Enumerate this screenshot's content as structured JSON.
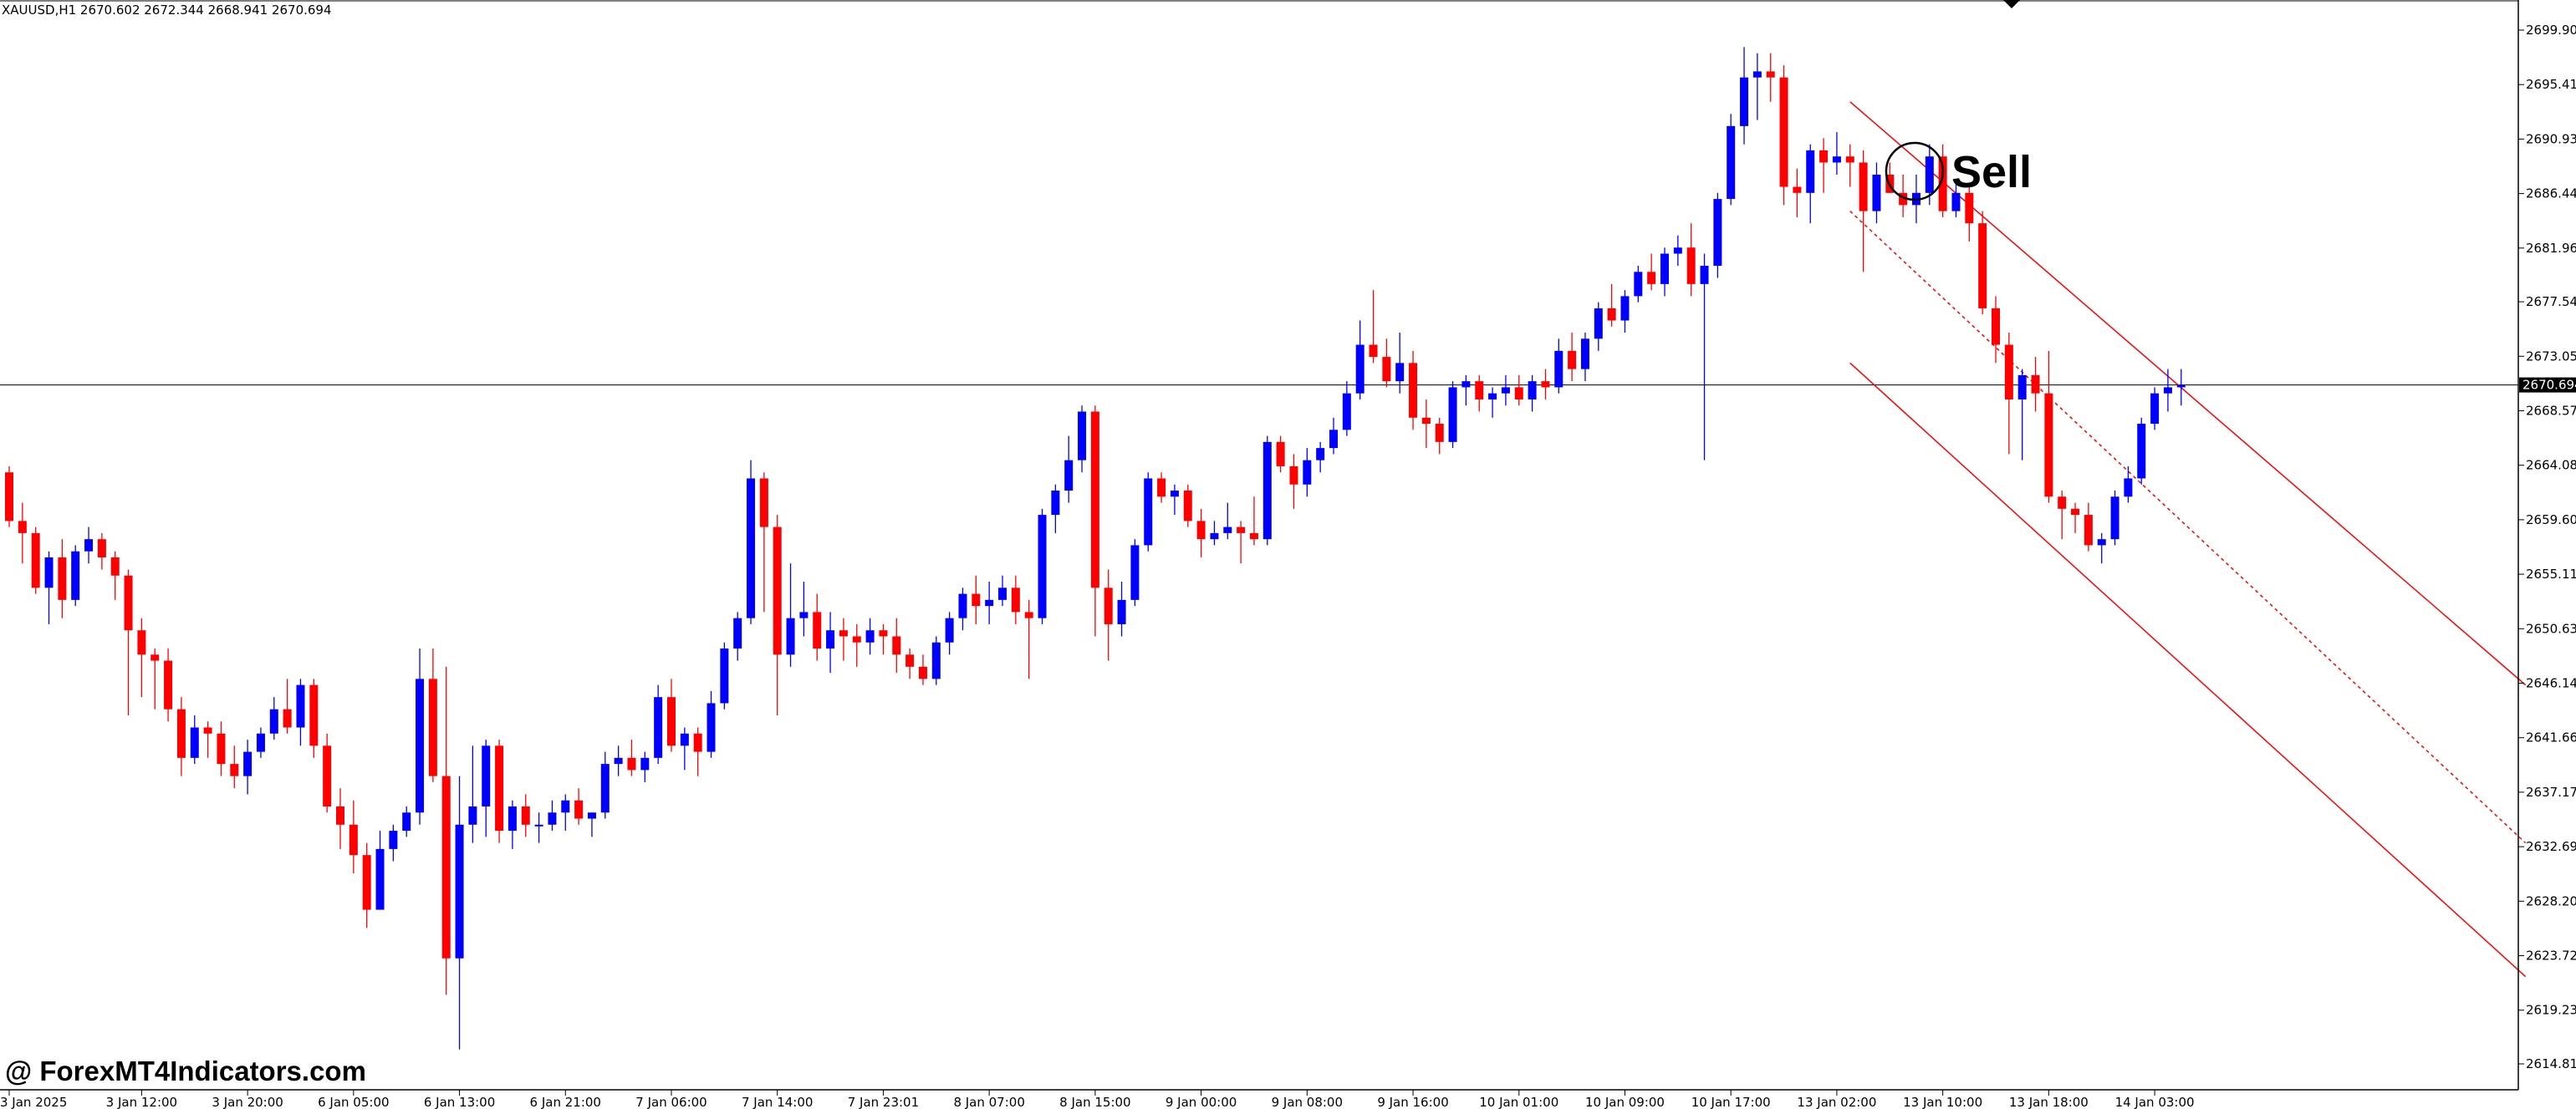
{
  "header": {
    "symbol_info": "XAUUSD,H1  2670.602 2672.344 2668.941 2670.694"
  },
  "watermark": {
    "text": "@ ForexMT4Indicators.com"
  },
  "signal": {
    "label": "Sell"
  },
  "colors": {
    "bull": "#0000ff",
    "bear": "#ff0000",
    "channel": "#ff0000",
    "axis": "#000000",
    "background": "#ffffff"
  },
  "chart_data": {
    "type": "candlestick",
    "symbol": "XAUUSD",
    "timeframe": "H1",
    "ylim": [
      2612.5,
      2702.0
    ],
    "y_ticks": [
      "2699.900",
      "2695.415",
      "2690.930",
      "2686.445",
      "2681.960",
      "2677.540",
      "2673.055",
      "2668.570",
      "2664.085",
      "2659.600",
      "2655.115",
      "2650.630",
      "2646.145",
      "2641.660",
      "2637.175",
      "2632.690",
      "2628.205",
      "2623.720",
      "2619.235",
      "2614.815"
    ],
    "current_price": "2670.694",
    "x_ticks": [
      {
        "label": "3 Jan 2025",
        "i": 0
      },
      {
        "label": "3 Jan 12:00",
        "i": 10
      },
      {
        "label": "3 Jan 20:00",
        "i": 18
      },
      {
        "label": "6 Jan 05:00",
        "i": 26
      },
      {
        "label": "6 Jan 13:00",
        "i": 34
      },
      {
        "label": "6 Jan 21:00",
        "i": 42
      },
      {
        "label": "7 Jan 06:00",
        "i": 50
      },
      {
        "label": "7 Jan 14:00",
        "i": 58
      },
      {
        "label": "7 Jan 23:01",
        "i": 66
      },
      {
        "label": "8 Jan 07:00",
        "i": 74
      },
      {
        "label": "8 Jan 15:00",
        "i": 82
      },
      {
        "label": "9 Jan 00:00",
        "i": 90
      },
      {
        "label": "9 Jan 08:00",
        "i": 98
      },
      {
        "label": "9 Jan 16:00",
        "i": 106
      },
      {
        "label": "10 Jan 01:00",
        "i": 114
      },
      {
        "label": "10 Jan 09:00",
        "i": 122
      },
      {
        "label": "10 Jan 17:00",
        "i": 130
      },
      {
        "label": "13 Jan 02:00",
        "i": 138
      },
      {
        "label": "13 Jan 10:00",
        "i": 146
      },
      {
        "label": "13 Jan 18:00",
        "i": 154
      },
      {
        "label": "14 Jan 03:00",
        "i": 162
      }
    ],
    "ohlc": [
      [
        2663.5,
        2664.0,
        2659.0,
        2659.5
      ],
      [
        2659.5,
        2661.0,
        2656.0,
        2658.5
      ],
      [
        2658.5,
        2659.0,
        2653.5,
        2654.0
      ],
      [
        2654.0,
        2657.0,
        2651.0,
        2656.5
      ],
      [
        2656.5,
        2658.0,
        2651.5,
        2653.0
      ],
      [
        2653.0,
        2657.5,
        2652.5,
        2657.0
      ],
      [
        2657.0,
        2659.0,
        2656.0,
        2658.0
      ],
      [
        2658.0,
        2658.5,
        2655.5,
        2656.5
      ],
      [
        2656.5,
        2657.0,
        2653.0,
        2655.0
      ],
      [
        2655.0,
        2655.5,
        2643.5,
        2650.5
      ],
      [
        2650.5,
        2651.5,
        2645.0,
        2648.5
      ],
      [
        2648.5,
        2649.0,
        2644.0,
        2648.0
      ],
      [
        2648.0,
        2649.0,
        2643.0,
        2644.0
      ],
      [
        2644.0,
        2645.0,
        2638.5,
        2640.0
      ],
      [
        2640.0,
        2643.5,
        2639.5,
        2642.5
      ],
      [
        2642.5,
        2643.0,
        2640.0,
        2642.0
      ],
      [
        2642.0,
        2643.0,
        2638.5,
        2639.5
      ],
      [
        2639.5,
        2641.0,
        2637.5,
        2638.5
      ],
      [
        2638.5,
        2641.5,
        2637.0,
        2640.5
      ],
      [
        2640.5,
        2642.5,
        2640.0,
        2642.0
      ],
      [
        2642.0,
        2645.0,
        2641.5,
        2644.0
      ],
      [
        2644.0,
        2646.5,
        2642.0,
        2642.5
      ],
      [
        2642.5,
        2646.5,
        2641.0,
        2646.0
      ],
      [
        2646.0,
        2646.5,
        2640.0,
        2641.0
      ],
      [
        2641.0,
        2642.0,
        2635.5,
        2636.0
      ],
      [
        2636.0,
        2637.5,
        2632.5,
        2634.5
      ],
      [
        2634.5,
        2636.5,
        2630.5,
        2632.0
      ],
      [
        2632.0,
        2633.0,
        2626.0,
        2627.5
      ],
      [
        2627.5,
        2634.0,
        2627.5,
        2632.5
      ],
      [
        2632.5,
        2634.5,
        2631.5,
        2634.0
      ],
      [
        2634.0,
        2636.0,
        2633.5,
        2635.5
      ],
      [
        2635.5,
        2649.0,
        2634.5,
        2646.5
      ],
      [
        2646.5,
        2649.0,
        2638.0,
        2638.5
      ],
      [
        2638.5,
        2647.5,
        2620.5,
        2623.5
      ],
      [
        2623.5,
        2638.5,
        2616.0,
        2634.5
      ],
      [
        2634.5,
        2641.0,
        2633.0,
        2636.0
      ],
      [
        2636.0,
        2641.5,
        2633.5,
        2641.0
      ],
      [
        2641.0,
        2641.5,
        2633.0,
        2634.0
      ],
      [
        2634.0,
        2636.5,
        2632.5,
        2636.0
      ],
      [
        2636.0,
        2637.0,
        2633.5,
        2634.5
      ],
      [
        2634.5,
        2635.5,
        2633.0,
        2634.5
      ],
      [
        2634.5,
        2636.5,
        2634.0,
        2635.5
      ],
      [
        2635.5,
        2637.0,
        2634.0,
        2636.5
      ],
      [
        2636.5,
        2637.5,
        2634.5,
        2635.0
      ],
      [
        2635.0,
        2635.5,
        2633.5,
        2635.5
      ],
      [
        2635.5,
        2640.5,
        2635.0,
        2639.5
      ],
      [
        2639.5,
        2641.0,
        2638.5,
        2640.0
      ],
      [
        2640.0,
        2641.5,
        2638.5,
        2639.0
      ],
      [
        2639.0,
        2640.5,
        2638.0,
        2640.0
      ],
      [
        2640.0,
        2646.0,
        2639.5,
        2645.0
      ],
      [
        2645.0,
        2646.5,
        2640.5,
        2641.0
      ],
      [
        2641.0,
        2642.5,
        2639.0,
        2642.0
      ],
      [
        2642.0,
        2642.5,
        2638.5,
        2640.5
      ],
      [
        2640.5,
        2645.5,
        2640.0,
        2644.5
      ],
      [
        2644.5,
        2649.5,
        2644.0,
        2649.0
      ],
      [
        2649.0,
        2652.0,
        2648.0,
        2651.5
      ],
      [
        2651.5,
        2664.5,
        2651.0,
        2663.0
      ],
      [
        2663.0,
        2663.5,
        2652.0,
        2659.0
      ],
      [
        2659.0,
        2660.0,
        2643.5,
        2648.5
      ],
      [
        2648.5,
        2656.0,
        2647.5,
        2651.5
      ],
      [
        2651.5,
        2654.5,
        2650.0,
        2652.0
      ],
      [
        2652.0,
        2653.5,
        2648.0,
        2649.0
      ],
      [
        2649.0,
        2652.0,
        2647.0,
        2650.5
      ],
      [
        2650.5,
        2651.5,
        2648.0,
        2650.0
      ],
      [
        2650.0,
        2651.0,
        2647.5,
        2649.5
      ],
      [
        2649.5,
        2651.5,
        2648.5,
        2650.5
      ],
      [
        2650.5,
        2651.0,
        2648.5,
        2650.0
      ],
      [
        2650.0,
        2651.5,
        2647.0,
        2648.5
      ],
      [
        2648.5,
        2649.0,
        2646.5,
        2647.5
      ],
      [
        2647.5,
        2648.5,
        2646.0,
        2646.5
      ],
      [
        2646.5,
        2650.0,
        2646.0,
        2649.5
      ],
      [
        2649.5,
        2652.0,
        2648.5,
        2651.5
      ],
      [
        2651.5,
        2654.0,
        2650.5,
        2653.5
      ],
      [
        2653.5,
        2655.0,
        2651.0,
        2652.5
      ],
      [
        2652.5,
        2654.5,
        2651.0,
        2653.0
      ],
      [
        2653.0,
        2655.0,
        2652.5,
        2654.0
      ],
      [
        2654.0,
        2655.0,
        2651.0,
        2652.0
      ],
      [
        2652.0,
        2653.0,
        2646.5,
        2651.5
      ],
      [
        2651.5,
        2660.5,
        2651.0,
        2660.0
      ],
      [
        2660.0,
        2662.5,
        2658.5,
        2662.0
      ],
      [
        2662.0,
        2666.5,
        2661.0,
        2664.5
      ],
      [
        2664.5,
        2669.0,
        2663.5,
        2668.5
      ],
      [
        2668.5,
        2669.0,
        2650.0,
        2654.0
      ],
      [
        2654.0,
        2655.5,
        2648.0,
        2651.0
      ],
      [
        2651.0,
        2654.5,
        2650.0,
        2653.0
      ],
      [
        2653.0,
        2658.0,
        2652.5,
        2657.5
      ],
      [
        2657.5,
        2663.5,
        2657.0,
        2663.0
      ],
      [
        2663.0,
        2663.5,
        2661.0,
        2661.5
      ],
      [
        2661.5,
        2662.5,
        2660.0,
        2662.0
      ],
      [
        2662.0,
        2662.5,
        2659.0,
        2659.5
      ],
      [
        2659.5,
        2660.5,
        2656.5,
        2658.0
      ],
      [
        2658.0,
        2659.5,
        2657.5,
        2658.5
      ],
      [
        2658.5,
        2661.0,
        2658.0,
        2659.0
      ],
      [
        2659.0,
        2659.5,
        2656.0,
        2658.5
      ],
      [
        2658.5,
        2661.5,
        2657.5,
        2658.0
      ],
      [
        2658.0,
        2666.5,
        2657.5,
        2666.0
      ],
      [
        2666.0,
        2666.5,
        2663.5,
        2664.0
      ],
      [
        2664.0,
        2665.0,
        2660.5,
        2662.5
      ],
      [
        2662.5,
        2665.5,
        2661.5,
        2664.5
      ],
      [
        2664.5,
        2666.0,
        2663.5,
        2665.5
      ],
      [
        2665.5,
        2668.0,
        2665.0,
        2667.0
      ],
      [
        2667.0,
        2671.0,
        2666.5,
        2670.0
      ],
      [
        2670.0,
        2676.0,
        2669.5,
        2674.0
      ],
      [
        2674.0,
        2678.5,
        2672.5,
        2673.0
      ],
      [
        2673.0,
        2674.5,
        2670.5,
        2671.0
      ],
      [
        2671.0,
        2675.0,
        2670.0,
        2672.5
      ],
      [
        2672.5,
        2673.5,
        2667.0,
        2668.0
      ],
      [
        2668.0,
        2669.5,
        2665.5,
        2667.5
      ],
      [
        2667.5,
        2668.0,
        2665.0,
        2666.0
      ],
      [
        2666.0,
        2671.0,
        2665.5,
        2670.5
      ],
      [
        2670.5,
        2671.5,
        2669.0,
        2671.0
      ],
      [
        2671.0,
        2671.5,
        2668.5,
        2669.5
      ],
      [
        2669.5,
        2670.5,
        2668.0,
        2670.0
      ],
      [
        2670.0,
        2671.5,
        2669.0,
        2670.5
      ],
      [
        2670.5,
        2671.5,
        2669.0,
        2669.5
      ],
      [
        2669.5,
        2671.5,
        2668.5,
        2671.0
      ],
      [
        2671.0,
        2672.0,
        2669.5,
        2670.5
      ],
      [
        2670.5,
        2674.5,
        2670.0,
        2673.5
      ],
      [
        2673.5,
        2675.0,
        2671.0,
        2672.0
      ],
      [
        2672.0,
        2675.0,
        2671.0,
        2674.5
      ],
      [
        2674.5,
        2677.5,
        2673.5,
        2677.0
      ],
      [
        2677.0,
        2679.0,
        2675.5,
        2676.0
      ],
      [
        2676.0,
        2678.5,
        2675.0,
        2678.0
      ],
      [
        2678.0,
        2680.5,
        2677.5,
        2680.0
      ],
      [
        2680.0,
        2681.5,
        2678.5,
        2679.0
      ],
      [
        2679.0,
        2682.0,
        2678.0,
        2681.5
      ],
      [
        2681.5,
        2683.0,
        2680.5,
        2682.0
      ],
      [
        2682.0,
        2684.0,
        2678.0,
        2679.0
      ],
      [
        2679.0,
        2681.5,
        2664.5,
        2680.5
      ],
      [
        2680.5,
        2686.5,
        2679.5,
        2686.0
      ],
      [
        2686.0,
        2693.0,
        2685.5,
        2692.0
      ],
      [
        2692.0,
        2698.5,
        2690.5,
        2696.0
      ],
      [
        2696.0,
        2698.0,
        2692.5,
        2696.5
      ],
      [
        2696.5,
        2698.0,
        2694.0,
        2696.0
      ],
      [
        2696.0,
        2697.0,
        2685.5,
        2687.0
      ],
      [
        2687.0,
        2688.5,
        2684.5,
        2686.5
      ],
      [
        2686.5,
        2690.5,
        2684.0,
        2690.0
      ],
      [
        2690.0,
        2691.0,
        2686.5,
        2689.0
      ],
      [
        2689.0,
        2691.5,
        2688.0,
        2689.5
      ],
      [
        2689.5,
        2690.5,
        2687.0,
        2689.0
      ],
      [
        2689.0,
        2690.0,
        2680.0,
        2685.0
      ],
      [
        2685.0,
        2689.0,
        2684.0,
        2688.0
      ],
      [
        2688.0,
        2689.0,
        2686.5,
        2686.5
      ],
      [
        2686.5,
        2688.0,
        2684.5,
        2685.5
      ],
      [
        2685.5,
        2688.0,
        2684.0,
        2686.5
      ],
      [
        2686.5,
        2690.5,
        2685.5,
        2689.5
      ],
      [
        2689.5,
        2690.5,
        2684.5,
        2685.0
      ],
      [
        2685.0,
        2687.5,
        2684.5,
        2686.5
      ],
      [
        2686.5,
        2687.0,
        2682.5,
        2684.0
      ],
      [
        2684.0,
        2685.0,
        2676.5,
        2677.0
      ],
      [
        2677.0,
        2678.0,
        2672.5,
        2674.0
      ],
      [
        2674.0,
        2675.0,
        2665.0,
        2669.5
      ],
      [
        2669.5,
        2672.0,
        2664.5,
        2671.5
      ],
      [
        2671.5,
        2673.0,
        2668.5,
        2670.0
      ],
      [
        2670.0,
        2673.5,
        2661.0,
        2661.5
      ],
      [
        2661.5,
        2662.0,
        2658.0,
        2660.5
      ],
      [
        2660.5,
        2661.0,
        2658.5,
        2660.0
      ],
      [
        2660.0,
        2661.0,
        2657.0,
        2657.5
      ],
      [
        2657.5,
        2658.5,
        2656.0,
        2658.0
      ],
      [
        2658.0,
        2662.0,
        2657.5,
        2661.5
      ],
      [
        2661.5,
        2664.0,
        2661.0,
        2663.0
      ],
      [
        2663.0,
        2668.0,
        2662.5,
        2667.5
      ],
      [
        2667.5,
        2670.5,
        2667.0,
        2670.0
      ],
      [
        2670.0,
        2672.0,
        2668.5,
        2670.5
      ],
      [
        2670.5,
        2672.0,
        2669.0,
        2670.694
      ]
    ],
    "channel": {
      "color": "#ff0000",
      "upper": [
        [
          139,
          2694.0
        ],
        [
          190,
          2646.0
        ]
      ],
      "middle": [
        [
          139,
          2685.0
        ],
        [
          190,
          2633.0
        ]
      ],
      "lower": [
        [
          139,
          2672.5
        ],
        [
          190,
          2622.0
        ]
      ]
    },
    "signal_bar": 144
  }
}
